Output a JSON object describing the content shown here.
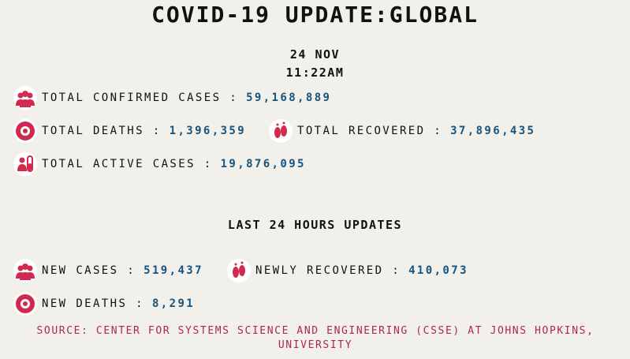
{
  "header": {
    "title": "COVID-19 UPDATE:GLOBAL",
    "date": "24 NOV",
    "time": "11:22AM"
  },
  "totals": [
    {
      "label": "TOTAL CONFIRMED CASES :",
      "value": "59,168,889"
    },
    {
      "label": "TOTAL DEATHS :",
      "value": "1,396,359"
    },
    {
      "label": "TOTAL RECOVERED :",
      "value": "37,896,435"
    },
    {
      "label": "TOTAL ACTIVE CASES :",
      "value": "19,876,095"
    }
  ],
  "last_24_hours": {
    "title": "LAST 24 HOURS UPDATES",
    "items": [
      {
        "label": "NEW CASES :",
        "value": "519,437"
      },
      {
        "label": "NEWLY RECOVERED :",
        "value": "410,073"
      },
      {
        "label": "NEW DEATHS :",
        "value": "8,291"
      }
    ]
  },
  "source": "SOURCE: CENTER FOR SYSTEMS SCIENCE AND ENGINEERING (CSSE) AT JOHNS HOPKINS, UNIVERSITY"
}
